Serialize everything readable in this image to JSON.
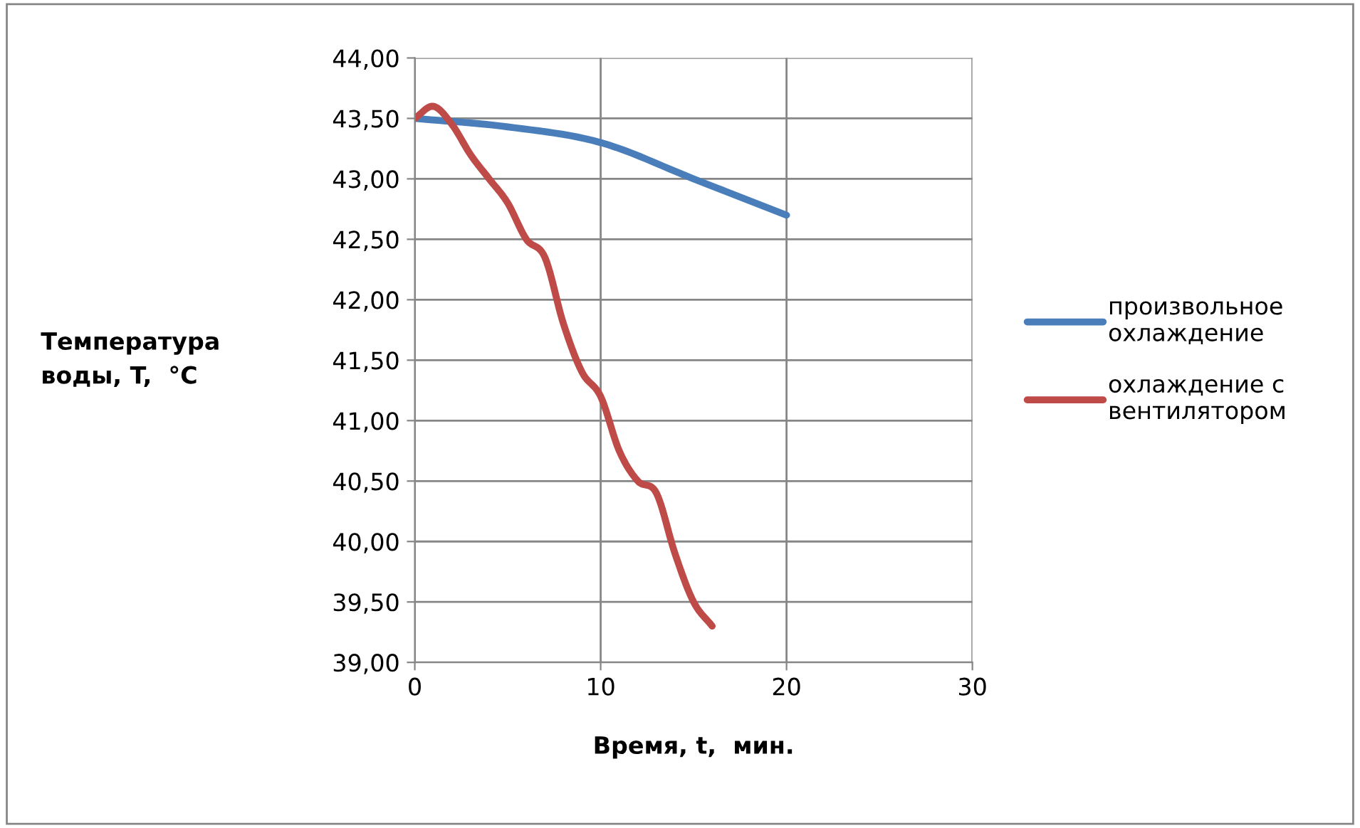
{
  "chart_data": {
    "type": "line",
    "xlabel": "Время, t,  мин.",
    "ylabel": "Температура\nводы, T,  °C",
    "xlim": [
      0,
      30
    ],
    "xticks": [
      0,
      10,
      20,
      30
    ],
    "ylim": [
      39,
      44
    ],
    "yticks": [
      {
        "value": 39,
        "label": "39,00"
      },
      {
        "value": 39.5,
        "label": "39,50"
      },
      {
        "value": 40,
        "label": "40,00"
      },
      {
        "value": 40.5,
        "label": "40,50"
      },
      {
        "value": 41,
        "label": "41,00"
      },
      {
        "value": 41.5,
        "label": "41,50"
      },
      {
        "value": 42,
        "label": "42,00"
      },
      {
        "value": 42.5,
        "label": "42,50"
      },
      {
        "value": 43,
        "label": "43,00"
      },
      {
        "value": 43.5,
        "label": "43,50"
      },
      {
        "value": 44,
        "label": "44,00"
      }
    ],
    "grid": true,
    "legend": "right",
    "marker": "none",
    "line_style": "solid",
    "series": [
      {
        "name": "произвольное\nохлаждение",
        "color": "#4a7ebb",
        "x": [
          0,
          5,
          10,
          15,
          20
        ],
        "values": [
          43.5,
          43.43,
          43.3,
          43.0,
          42.7
        ]
      },
      {
        "name": "охлаждение с\nвентилятором",
        "color": "#be4b48",
        "x": [
          0,
          1,
          2,
          3,
          4,
          5,
          6,
          7,
          8,
          9,
          10,
          11,
          12,
          13,
          14,
          15,
          16
        ],
        "values": [
          43.5,
          43.6,
          43.45,
          43.2,
          43.0,
          42.8,
          42.5,
          42.35,
          41.8,
          41.4,
          41.2,
          40.75,
          40.5,
          40.4,
          39.9,
          39.5,
          39.3
        ]
      }
    ]
  }
}
